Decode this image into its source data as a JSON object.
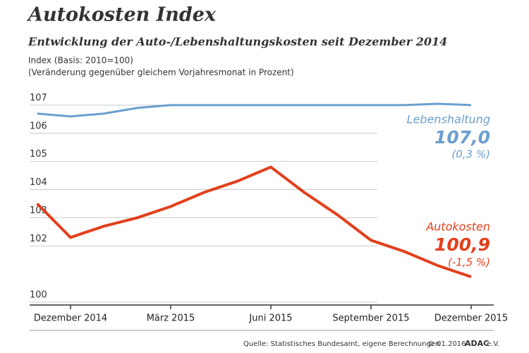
{
  "chart_data": {
    "type": "line",
    "title": "Autokosten Index",
    "subtitle": "Entwicklung der Auto-/Lebenshaltungskosten seit Dezember 2014",
    "y_label": "Index (Basis: 2010=100)",
    "y_label_note": "(Veränderung gegenüber gleichem Vorjahresmonat in Prozent)",
    "categories": [
      null,
      "Dezember 2014",
      null,
      null,
      "März 2015",
      null,
      null,
      "Juni 2015",
      null,
      null,
      "September 2015",
      null,
      null,
      "Dezember 2015"
    ],
    "series": [
      {
        "name": "Lebenshaltung",
        "color": "#6b9fcf",
        "change": "(0,3 %)",
        "values": [
          106.7,
          106.6,
          106.7,
          106.9,
          107.0,
          107.0,
          107.0,
          107.0,
          107.0,
          107.0,
          107.0,
          107.0,
          107.05,
          107.0
        ],
        "value_labels": [
          null,
          null,
          null,
          null,
          null,
          null,
          null,
          null,
          null,
          null,
          null,
          null,
          null,
          "107,0"
        ]
      },
      {
        "name": "Autokosten",
        "color": "#e2401c",
        "change": "(-1,5 %)",
        "values": [
          103.5,
          102.3,
          102.7,
          103.0,
          103.4,
          103.9,
          104.3,
          104.8,
          103.9,
          103.1,
          102.2,
          101.8,
          101.3,
          100.9
        ],
        "value_labels": [
          null,
          null,
          null,
          null,
          null,
          null,
          null,
          null,
          null,
          null,
          null,
          null,
          null,
          "100,9"
        ]
      }
    ],
    "ylim": [
      99.9,
      107.5
    ],
    "yticks": [
      100,
      102,
      103,
      104,
      105,
      106,
      107
    ],
    "grid": true,
    "source": "Quelle: Statistisches Bundesamt, eigene Berechnungen",
    "date": "© 01.2016",
    "brand": "ADAC",
    "brand_suffix": "e.V."
  }
}
